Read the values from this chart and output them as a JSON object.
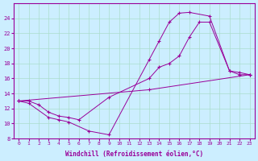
{
  "title": "",
  "xlabel": "Windchill (Refroidissement éolien,°C)",
  "ylabel": "",
  "bg_color": "#cceeff",
  "line_color": "#990099",
  "marker": "+",
  "xlim": [
    -0.5,
    23.5
  ],
  "ylim": [
    8,
    26
  ],
  "xticks": [
    0,
    1,
    2,
    3,
    4,
    5,
    6,
    7,
    8,
    9,
    10,
    11,
    12,
    13,
    14,
    15,
    16,
    17,
    18,
    19,
    20,
    21,
    22,
    23
  ],
  "yticks": [
    8,
    10,
    12,
    14,
    16,
    18,
    20,
    22,
    24
  ],
  "grid_color": "#aaddcc",
  "series": [
    {
      "x": [
        0,
        1,
        3,
        4,
        5,
        7,
        9,
        13,
        14,
        15,
        16,
        17,
        19,
        21,
        22,
        23
      ],
      "y": [
        13,
        12.7,
        10.8,
        10.5,
        10.2,
        9.0,
        8.5,
        18.5,
        21.0,
        23.5,
        24.7,
        24.8,
        24.3,
        17.0,
        16.8,
        16.5
      ]
    },
    {
      "x": [
        0,
        1,
        2,
        3,
        4,
        5,
        6,
        9,
        13,
        14,
        15,
        16,
        17,
        18,
        19,
        21,
        22,
        23
      ],
      "y": [
        13,
        13,
        12.5,
        11.5,
        11.0,
        10.8,
        10.5,
        13.5,
        16.0,
        17.5,
        18.0,
        19.0,
        21.5,
        23.5,
        23.5,
        17.0,
        16.5,
        16.5
      ]
    },
    {
      "x": [
        0,
        13,
        23
      ],
      "y": [
        13,
        14.5,
        16.5
      ]
    }
  ]
}
